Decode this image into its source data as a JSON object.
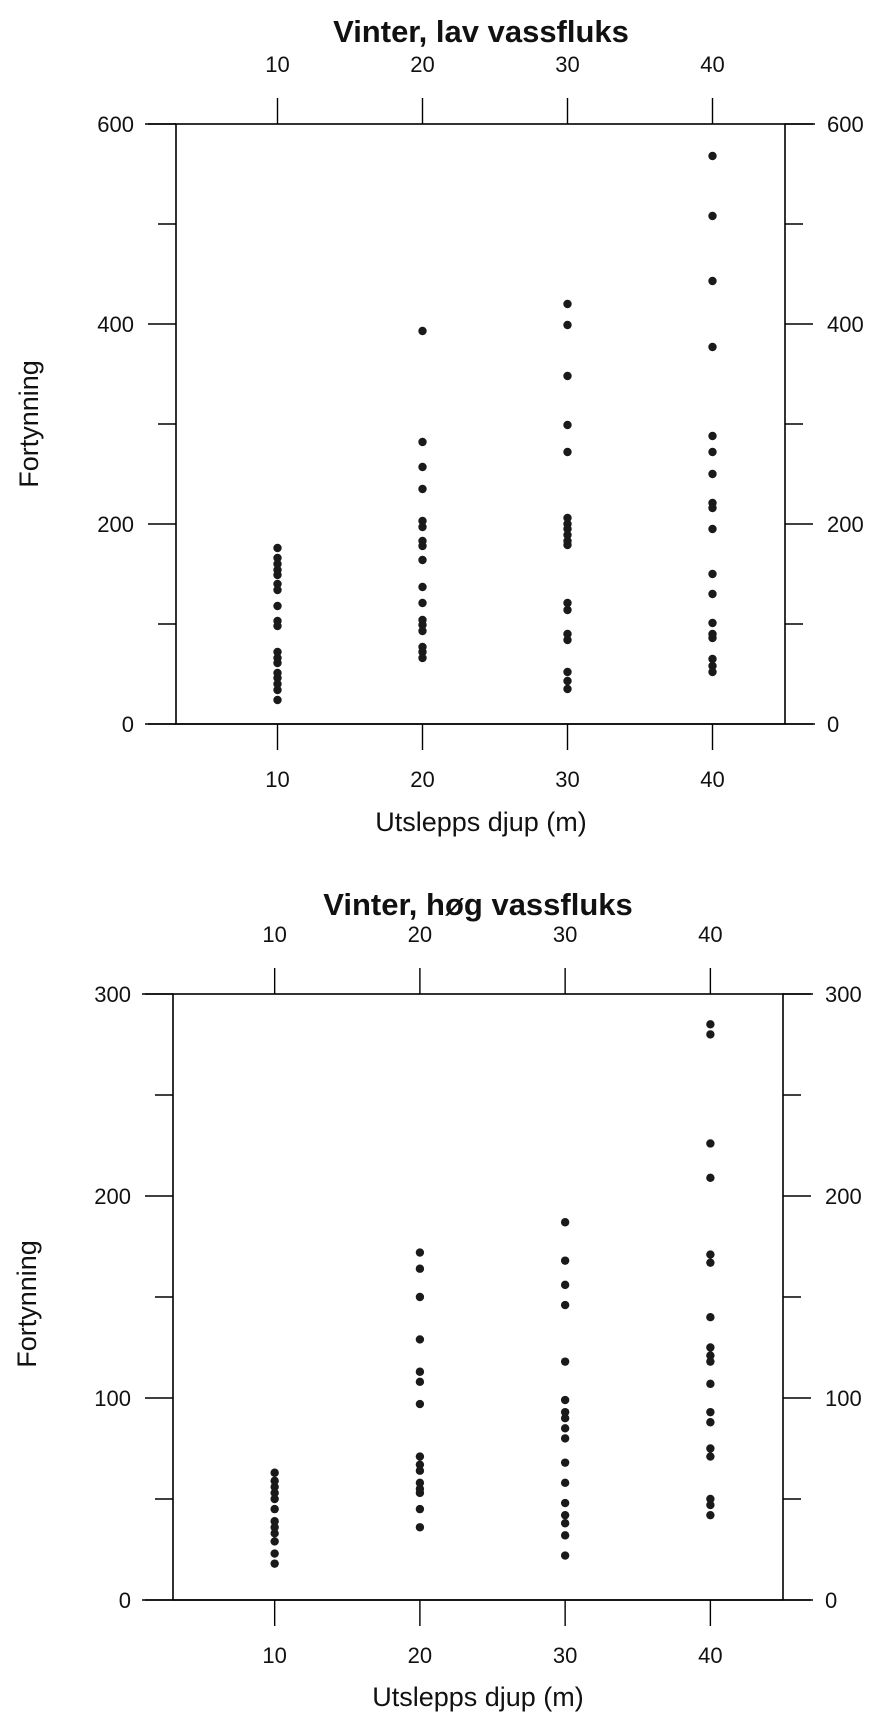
{
  "chart_data": [
    {
      "type": "scatter",
      "title": "Vinter, lav vassfluks",
      "xlabel": "Utslepps djup (m)",
      "ylabel": "Fortynning",
      "xlim": [
        3,
        45
      ],
      "ylim": [
        0,
        600
      ],
      "xticks": [
        10,
        20,
        30,
        40
      ],
      "yticks_labeled": [
        0,
        200,
        400,
        600
      ],
      "yticks_minor": [
        100,
        300,
        500
      ],
      "grid": false,
      "legend": "none",
      "series": [
        {
          "points": [
            [
              10,
              176
            ],
            [
              10,
              166
            ],
            [
              10,
              160
            ],
            [
              10,
              154
            ],
            [
              10,
              149
            ],
            [
              10,
              140
            ],
            [
              10,
              134
            ],
            [
              10,
              118
            ],
            [
              10,
              103
            ],
            [
              10,
              98
            ],
            [
              10,
              72
            ],
            [
              10,
              66
            ],
            [
              10,
              61
            ],
            [
              10,
              51
            ],
            [
              10,
              46
            ],
            [
              10,
              40
            ],
            [
              10,
              34
            ],
            [
              10,
              24
            ],
            [
              20,
              393
            ],
            [
              20,
              282
            ],
            [
              20,
              257
            ],
            [
              20,
              235
            ],
            [
              20,
              203
            ],
            [
              20,
              197
            ],
            [
              20,
              183
            ],
            [
              20,
              178
            ],
            [
              20,
              164
            ],
            [
              20,
              137
            ],
            [
              20,
              121
            ],
            [
              20,
              104
            ],
            [
              20,
              99
            ],
            [
              20,
              93
            ],
            [
              20,
              77
            ],
            [
              20,
              72
            ],
            [
              20,
              66
            ],
            [
              30,
              420
            ],
            [
              30,
              399
            ],
            [
              30,
              348
            ],
            [
              30,
              299
            ],
            [
              30,
              272
            ],
            [
              30,
              206
            ],
            [
              30,
              200
            ],
            [
              30,
              195
            ],
            [
              30,
              189
            ],
            [
              30,
              183
            ],
            [
              30,
              179
            ],
            [
              30,
              121
            ],
            [
              30,
              114
            ],
            [
              30,
              90
            ],
            [
              30,
              84
            ],
            [
              30,
              52
            ],
            [
              30,
              43
            ],
            [
              30,
              35
            ],
            [
              40,
              568
            ],
            [
              40,
              508
            ],
            [
              40,
              443
            ],
            [
              40,
              377
            ],
            [
              40,
              288
            ],
            [
              40,
              272
            ],
            [
              40,
              250
            ],
            [
              40,
              221
            ],
            [
              40,
              216
            ],
            [
              40,
              195
            ],
            [
              40,
              150
            ],
            [
              40,
              130
            ],
            [
              40,
              101
            ],
            [
              40,
              90
            ],
            [
              40,
              86
            ],
            [
              40,
              65
            ],
            [
              40,
              58
            ],
            [
              40,
              52
            ]
          ]
        }
      ]
    },
    {
      "type": "scatter",
      "title": "Vinter, høg vassfluks",
      "xlabel": "Utslepps djup (m)",
      "ylabel": "Fortynning",
      "xlim": [
        3,
        45
      ],
      "ylim": [
        0,
        300
      ],
      "xticks": [
        10,
        20,
        30,
        40
      ],
      "yticks_labeled": [
        0,
        100,
        200,
        300
      ],
      "yticks_minor": [
        50,
        150,
        250
      ],
      "grid": false,
      "legend": "none",
      "series": [
        {
          "points": [
            [
              10,
              63
            ],
            [
              10,
              59
            ],
            [
              10,
              56
            ],
            [
              10,
              53
            ],
            [
              10,
              50
            ],
            [
              10,
              45
            ],
            [
              10,
              39
            ],
            [
              10,
              36
            ],
            [
              10,
              33
            ],
            [
              10,
              29
            ],
            [
              10,
              23
            ],
            [
              10,
              18
            ],
            [
              20,
              172
            ],
            [
              20,
              164
            ],
            [
              20,
              150
            ],
            [
              20,
              129
            ],
            [
              20,
              113
            ],
            [
              20,
              108
            ],
            [
              20,
              97
            ],
            [
              20,
              71
            ],
            [
              20,
              67
            ],
            [
              20,
              64
            ],
            [
              20,
              58
            ],
            [
              20,
              55
            ],
            [
              20,
              53
            ],
            [
              20,
              45
            ],
            [
              20,
              36
            ],
            [
              30,
              187
            ],
            [
              30,
              168
            ],
            [
              30,
              156
            ],
            [
              30,
              146
            ],
            [
              30,
              118
            ],
            [
              30,
              99
            ],
            [
              30,
              93
            ],
            [
              30,
              90
            ],
            [
              30,
              85
            ],
            [
              30,
              80
            ],
            [
              30,
              68
            ],
            [
              30,
              58
            ],
            [
              30,
              48
            ],
            [
              30,
              42
            ],
            [
              30,
              38
            ],
            [
              30,
              32
            ],
            [
              30,
              22
            ],
            [
              40,
              285
            ],
            [
              40,
              280
            ],
            [
              40,
              226
            ],
            [
              40,
              209
            ],
            [
              40,
              171
            ],
            [
              40,
              167
            ],
            [
              40,
              140
            ],
            [
              40,
              125
            ],
            [
              40,
              121
            ],
            [
              40,
              118
            ],
            [
              40,
              107
            ],
            [
              40,
              93
            ],
            [
              40,
              88
            ],
            [
              40,
              75
            ],
            [
              40,
              71
            ],
            [
              40,
              50
            ],
            [
              40,
              47
            ],
            [
              40,
              42
            ]
          ]
        }
      ]
    }
  ]
}
